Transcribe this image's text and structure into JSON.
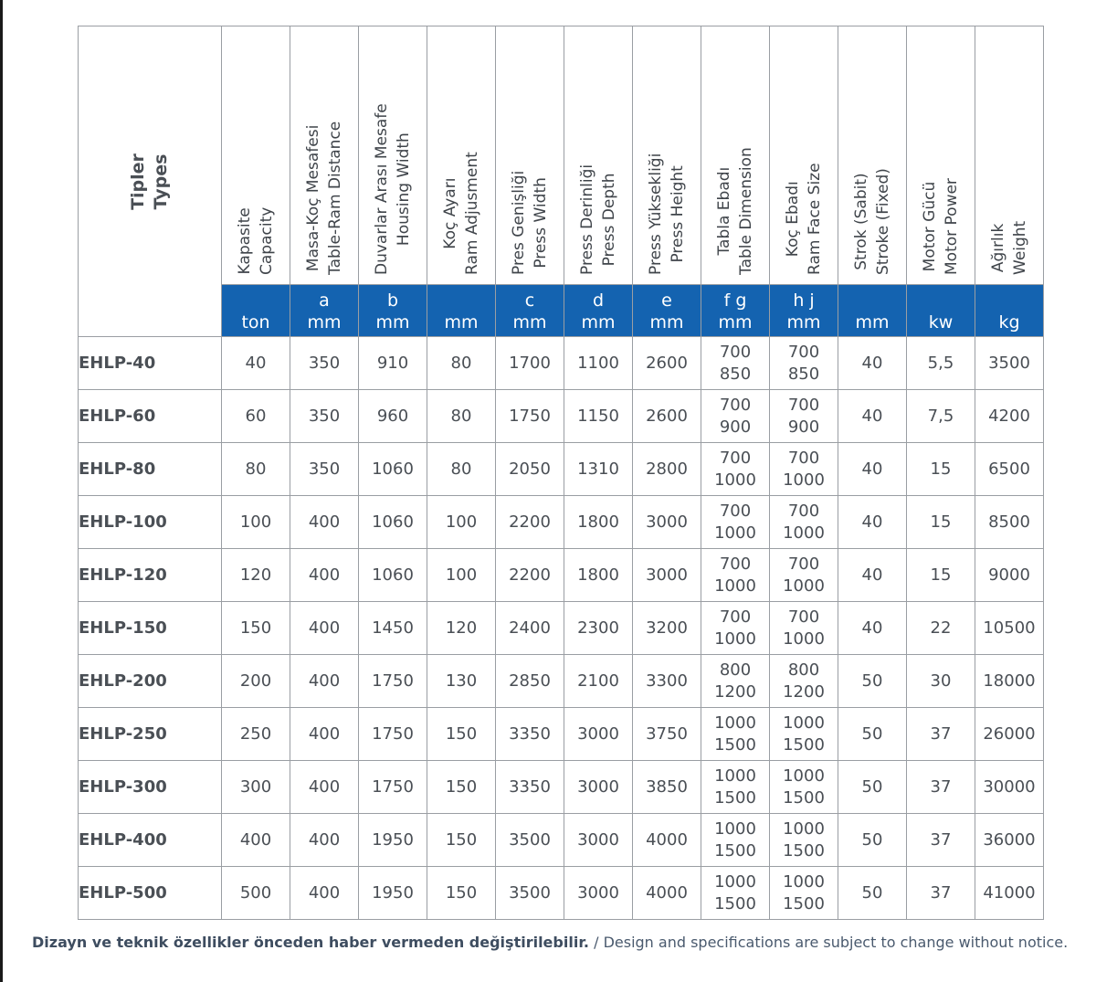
{
  "table": {
    "type_header": [
      "Tipler",
      "Types"
    ],
    "columns": [
      {
        "tr": "Kapasite",
        "en": "Capacity",
        "sym": "",
        "unit": "ton"
      },
      {
        "tr": "Masa-Koç Mesafesi",
        "en": "Table-Ram Distance",
        "sym": "a",
        "unit": "mm"
      },
      {
        "tr": "Duvarlar Arası Mesafe",
        "en": "Housing Width",
        "sym": "b",
        "unit": "mm"
      },
      {
        "tr": "Koç Ayarı",
        "en": "Ram Adjusment",
        "sym": "",
        "unit": "mm"
      },
      {
        "tr": "Pres Genişliği",
        "en": "Press Width",
        "sym": "c",
        "unit": "mm"
      },
      {
        "tr": "Press Derinliği",
        "en": "Press Depth",
        "sym": "d",
        "unit": "mm"
      },
      {
        "tr": "Press Yüksekliği",
        "en": "Press Height",
        "sym": "e",
        "unit": "mm"
      },
      {
        "tr": "Tabla Ebadı",
        "en": "Table Dimension",
        "sym": "f g",
        "unit": "mm"
      },
      {
        "tr": "Koç Ebadı",
        "en": "Ram Face Size",
        "sym": "h j",
        "unit": "mm"
      },
      {
        "tr": "Strok (Sabit)",
        "en": "Stroke (Fixed)",
        "sym": "",
        "unit": "mm"
      },
      {
        "tr": "Motor Gücü",
        "en": "Motor Power",
        "sym": "",
        "unit": "kw"
      },
      {
        "tr": "Ağırlık",
        "en": "Weight",
        "sym": "",
        "unit": "kg"
      }
    ],
    "rows": [
      {
        "type": "EHLP-40",
        "values": [
          "40",
          "350",
          "910",
          "80",
          "1700",
          "1100",
          "2600",
          [
            "700",
            "850"
          ],
          [
            "700",
            "850"
          ],
          "40",
          "5,5",
          "3500"
        ]
      },
      {
        "type": "EHLP-60",
        "values": [
          "60",
          "350",
          "960",
          "80",
          "1750",
          "1150",
          "2600",
          [
            "700",
            "900"
          ],
          [
            "700",
            "900"
          ],
          "40",
          "7,5",
          "4200"
        ]
      },
      {
        "type": "EHLP-80",
        "values": [
          "80",
          "350",
          "1060",
          "80",
          "2050",
          "1310",
          "2800",
          [
            "700",
            "1000"
          ],
          [
            "700",
            "1000"
          ],
          "40",
          "15",
          "6500"
        ]
      },
      {
        "type": "EHLP-100",
        "values": [
          "100",
          "400",
          "1060",
          "100",
          "2200",
          "1800",
          "3000",
          [
            "700",
            "1000"
          ],
          [
            "700",
            "1000"
          ],
          "40",
          "15",
          "8500"
        ]
      },
      {
        "type": "EHLP-120",
        "values": [
          "120",
          "400",
          "1060",
          "100",
          "2200",
          "1800",
          "3000",
          [
            "700",
            "1000"
          ],
          [
            "700",
            "1000"
          ],
          "40",
          "15",
          "9000"
        ]
      },
      {
        "type": "EHLP-150",
        "values": [
          "150",
          "400",
          "1450",
          "120",
          "2400",
          "2300",
          "3200",
          [
            "700",
            "1000"
          ],
          [
            "700",
            "1000"
          ],
          "40",
          "22",
          "10500"
        ]
      },
      {
        "type": "EHLP-200",
        "values": [
          "200",
          "400",
          "1750",
          "130",
          "2850",
          "2100",
          "3300",
          [
            "800",
            "1200"
          ],
          [
            "800",
            "1200"
          ],
          "50",
          "30",
          "18000"
        ]
      },
      {
        "type": "EHLP-250",
        "values": [
          "250",
          "400",
          "1750",
          "150",
          "3350",
          "3000",
          "3750",
          [
            "1000",
            "1500"
          ],
          [
            "1000",
            "1500"
          ],
          "50",
          "37",
          "26000"
        ]
      },
      {
        "type": "EHLP-300",
        "values": [
          "300",
          "400",
          "1750",
          "150",
          "3350",
          "3000",
          "3850",
          [
            "1000",
            "1500"
          ],
          [
            "1000",
            "1500"
          ],
          "50",
          "37",
          "30000"
        ]
      },
      {
        "type": "EHLP-400",
        "values": [
          "400",
          "400",
          "1950",
          "150",
          "3500",
          "3000",
          "4000",
          [
            "1000",
            "1500"
          ],
          [
            "1000",
            "1500"
          ],
          "50",
          "37",
          "36000"
        ]
      },
      {
        "type": "EHLP-500",
        "values": [
          "500",
          "400",
          "1950",
          "150",
          "3500",
          "3000",
          "4000",
          [
            "1000",
            "1500"
          ],
          [
            "1000",
            "1500"
          ],
          "50",
          "37",
          "41000"
        ]
      }
    ]
  },
  "footnote": {
    "tr": "Dizayn ve teknik özellikler önceden haber vermeden değiştirilebilir.",
    "en": " / Design and specifications are subject to change without notice."
  },
  "colors": {
    "header_band": "#1463b0",
    "grid": "#9a9ea3",
    "text": "#4a4f55"
  }
}
